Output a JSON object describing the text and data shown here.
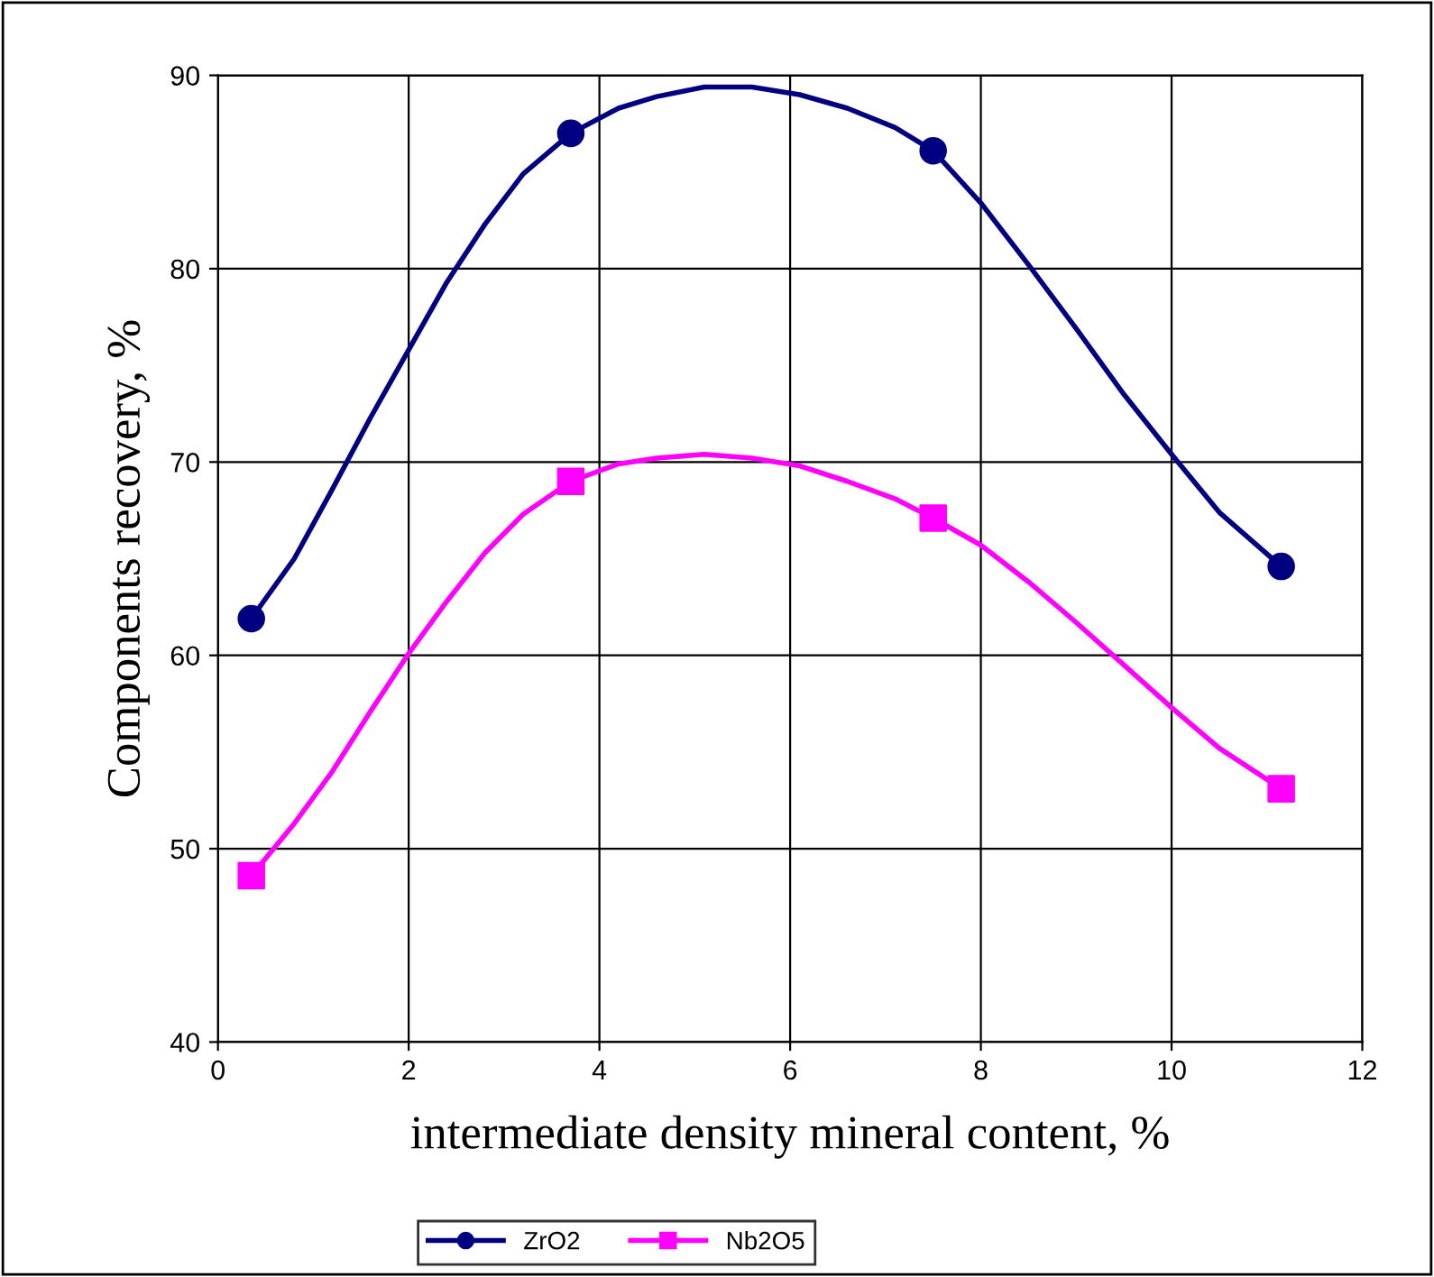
{
  "chart_data": {
    "type": "line",
    "xlabel": "intermediate density mineral content, %",
    "ylabel": "Components recovery, %",
    "xlim": [
      0,
      12
    ],
    "xticks": [
      0,
      2,
      4,
      6,
      8,
      10,
      12
    ],
    "ylim": [
      40,
      90
    ],
    "yticks": [
      40,
      50,
      60,
      70,
      80,
      90
    ],
    "grid": true,
    "legend": "bottom",
    "line_style": "solid",
    "series": [
      {
        "name": "ZrO2",
        "color": "#000080",
        "marker": "none",
        "x": [
          0.35,
          0.8,
          1.2,
          1.6,
          2.0,
          2.4,
          2.8,
          3.2,
          3.7,
          4.2,
          4.6,
          5.1,
          5.6,
          6.1,
          6.6,
          7.1,
          7.5,
          8.0,
          8.5,
          9.0,
          9.5,
          10.0,
          10.5,
          11.15
        ],
        "values": [
          61.9,
          65,
          68.6,
          72.3,
          75.8,
          79.3,
          82.3,
          84.9,
          87,
          88.3,
          88.9,
          89.4,
          89.4,
          89.0,
          88.3,
          87.3,
          86.1,
          83.4,
          80.2,
          76.9,
          73.5,
          70.4,
          67.4,
          64.6
        ]
      },
      {
        "type": "scatter",
        "color": "#000080",
        "marker": "circle",
        "x": [
          0.35,
          3.7,
          7.5,
          11.15
        ],
        "values": [
          61.9,
          87,
          86.1,
          64.6
        ]
      },
      {
        "name": "Nb2O5",
        "color": "#ff00ff",
        "marker": "none",
        "x": [
          0.35,
          0.8,
          1.2,
          1.6,
          2.0,
          2.4,
          2.8,
          3.2,
          3.7,
          4.2,
          4.6,
          5.1,
          5.6,
          6.1,
          6.6,
          7.1,
          7.5,
          8.0,
          8.5,
          9.0,
          9.5,
          10.0,
          10.5,
          11.15
        ],
        "values": [
          48.6,
          51.3,
          54.0,
          57.1,
          60.1,
          62.8,
          65.3,
          67.3,
          69,
          69.9,
          70.2,
          70.4,
          70.2,
          69.8,
          69.0,
          68.1,
          67.1,
          65.7,
          63.8,
          61.7,
          59.5,
          57.3,
          55.2,
          53.1
        ]
      },
      {
        "type": "scatter",
        "color": "#ff00ff",
        "marker": "square",
        "x": [
          0.35,
          3.7,
          7.5,
          11.15
        ],
        "values": [
          48.6,
          69,
          67.1,
          53.1
        ]
      }
    ]
  }
}
